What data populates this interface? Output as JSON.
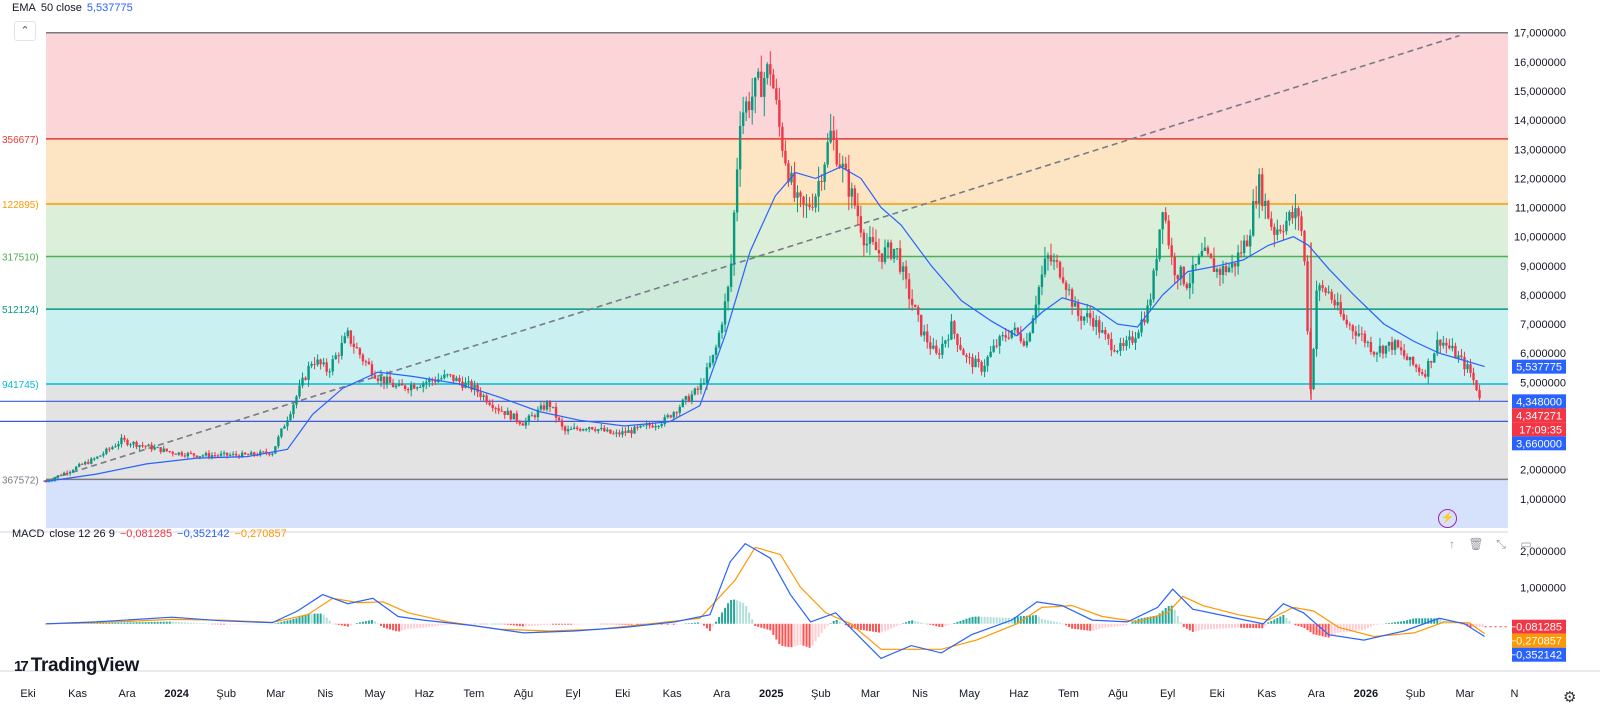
{
  "indicators": {
    "ema": {
      "name": "EMA",
      "params": "50 close",
      "value": "5,537775",
      "color": "#2962ff"
    },
    "macd": {
      "name": "MACD",
      "params": "close 12 26 9",
      "hist": "−0,081285",
      "macd": "−0,352142",
      "signal": "−0,270857",
      "hist_color": "#f23645",
      "macd_color": "#2962ff",
      "signal_color": "#ff9800"
    }
  },
  "branding": {
    "logo": "TradingView",
    "logo_mark": "17"
  },
  "icons": {
    "collapse": "chevron-up-icon",
    "settings": "gear-icon",
    "flash": "lightning-icon"
  },
  "pane_controls": {
    "up": "↑",
    "delete": "🗑",
    "collapse": "⤡",
    "maximize": "▭"
  },
  "chart_data": {
    "type": "candlestick",
    "price_axis": {
      "ticks": [
        "17,000000",
        "16,000000",
        "15,000000",
        "14,000000",
        "13,000000",
        "12,000000",
        "11,000000",
        "10,000000",
        "9,000000",
        "8,000000",
        "7,000000",
        "6,000000",
        "5,000000",
        "4,000000",
        "3,000000",
        "2,000000",
        "1,000000"
      ],
      "ylim": [
        0,
        17.3
      ]
    },
    "time_axis": {
      "labels": [
        "Eki",
        "Kas",
        "Ara",
        "2024",
        "Şub",
        "Mar",
        "Nis",
        "May",
        "Haz",
        "Tem",
        "Ağu",
        "Eyl",
        "Eki",
        "Kas",
        "Ara",
        "2025",
        "Şub",
        "Mar",
        "Nis",
        "May",
        "Haz",
        "Tem",
        "Ağu",
        "Eyl",
        "Eki",
        "Kas",
        "Ara",
        "2026",
        "Şub",
        "Mar",
        "N"
      ],
      "bold": [
        "2024",
        "2025",
        "2026"
      ]
    },
    "price_badges": [
      {
        "label": "5,537775",
        "value": 5.5378,
        "color": "#2962ff"
      },
      {
        "label": "4,348000",
        "value": 4.348,
        "color": "#2962ff"
      },
      {
        "label": "4,347271",
        "value": 4.3473,
        "color": "#f23645"
      },
      {
        "label": "17:09:35",
        "value": 4.3473,
        "color": "#f23645"
      },
      {
        "label": "3,660000",
        "value": 3.66,
        "color": "#2962ff"
      }
    ],
    "horizontal_lines": [
      4.348,
      3.66
    ],
    "fib_levels": [
      {
        "label": "",
        "value": 17.0,
        "line": "#787b86",
        "fill": "#fbd5d8"
      },
      {
        "label": "356677)",
        "value": 13.3567,
        "line": "#e53935",
        "fill": "#fde5c3"
      },
      {
        "label": "122895)",
        "value": 11.1229,
        "line": "#ff9800",
        "fill": "#dcefd8"
      },
      {
        "label": "317510)",
        "value": 9.3175,
        "line": "#4caf50",
        "fill": "#cdeadb"
      },
      {
        "label": "512124)",
        "value": 7.5121,
        "line": "#089981",
        "fill": "#cbf0f2"
      },
      {
        "label": "941745)",
        "value": 4.9417,
        "line": "#00bcd4",
        "fill": "#e3e3e3"
      },
      {
        "label": "367572)",
        "value": 1.6676,
        "line": "#787b86",
        "fill": "#d6e1fb"
      }
    ],
    "trendline": {
      "from": [
        -0.05,
        1.6
      ],
      "to": [
        28.1,
        16.9
      ],
      "style": "dashed",
      "color": "#787b86"
    },
    "ohlc_path": [
      [
        0.0,
        1.6
      ],
      [
        0.5,
        2.0
      ],
      [
        1.0,
        2.4
      ],
      [
        1.5,
        3.0
      ],
      [
        2.0,
        2.8
      ],
      [
        2.5,
        2.6
      ],
      [
        3.0,
        2.5
      ],
      [
        3.5,
        2.5
      ],
      [
        4.0,
        2.5
      ],
      [
        4.5,
        2.6
      ],
      [
        5.0,
        4.6
      ],
      [
        5.3,
        5.8
      ],
      [
        5.6,
        5.4
      ],
      [
        6.0,
        6.6
      ],
      [
        6.3,
        5.8
      ],
      [
        6.6,
        5.2
      ],
      [
        7.0,
        4.8
      ],
      [
        7.5,
        5.0
      ],
      [
        8.0,
        5.2
      ],
      [
        8.5,
        4.8
      ],
      [
        9.0,
        4.1
      ],
      [
        9.5,
        3.6
      ],
      [
        10.0,
        4.3
      ],
      [
        10.3,
        3.3
      ],
      [
        10.8,
        3.5
      ],
      [
        11.3,
        3.2
      ],
      [
        11.8,
        3.4
      ],
      [
        12.3,
        3.7
      ],
      [
        12.6,
        4.2
      ],
      [
        13.0,
        4.8
      ],
      [
        13.3,
        6.0
      ],
      [
        13.6,
        8.5
      ],
      [
        13.8,
        14.2
      ],
      [
        14.1,
        15.0
      ],
      [
        14.4,
        15.8
      ],
      [
        14.6,
        13.5
      ],
      [
        14.9,
        11.2
      ],
      [
        15.1,
        10.9
      ],
      [
        15.3,
        11.5
      ],
      [
        15.6,
        13.5
      ],
      [
        15.9,
        12.0
      ],
      [
        16.1,
        11.0
      ],
      [
        16.3,
        9.8
      ],
      [
        16.6,
        9.4
      ],
      [
        16.9,
        9.6
      ],
      [
        17.1,
        8.3
      ],
      [
        17.4,
        6.8
      ],
      [
        17.7,
        5.9
      ],
      [
        18.0,
        6.9
      ],
      [
        18.3,
        5.8
      ],
      [
        18.6,
        5.5
      ],
      [
        18.9,
        6.3
      ],
      [
        19.2,
        6.8
      ],
      [
        19.5,
        6.4
      ],
      [
        19.7,
        8.0
      ],
      [
        19.9,
        9.3
      ],
      [
        20.2,
        8.8
      ],
      [
        20.5,
        7.3
      ],
      [
        20.8,
        7.2
      ],
      [
        21.1,
        6.4
      ],
      [
        21.4,
        6.1
      ],
      [
        21.6,
        6.5
      ],
      [
        21.9,
        7.5
      ],
      [
        22.0,
        8.3
      ],
      [
        22.2,
        11.2
      ],
      [
        22.4,
        9.0
      ],
      [
        22.7,
        8.4
      ],
      [
        23.0,
        9.4
      ],
      [
        23.3,
        8.8
      ],
      [
        23.6,
        9.0
      ],
      [
        23.9,
        10.0
      ],
      [
        24.1,
        11.9
      ],
      [
        24.4,
        10.2
      ],
      [
        24.7,
        10.6
      ],
      [
        24.9,
        10.8
      ],
      [
        25.0,
        9.8
      ],
      [
        25.15,
        4.4
      ],
      [
        25.25,
        8.2
      ],
      [
        25.5,
        8.1
      ],
      [
        25.8,
        7.1
      ],
      [
        26.1,
        6.7
      ],
      [
        26.4,
        6.1
      ],
      [
        26.8,
        6.3
      ],
      [
        27.1,
        5.7
      ],
      [
        27.4,
        5.3
      ],
      [
        27.7,
        6.5
      ],
      [
        28.0,
        6.0
      ],
      [
        28.3,
        5.4
      ],
      [
        28.55,
        4.35
      ]
    ],
    "ema_path": [
      [
        0.0,
        1.6
      ],
      [
        1.0,
        1.85
      ],
      [
        2.0,
        2.2
      ],
      [
        3.0,
        2.4
      ],
      [
        4.0,
        2.45
      ],
      [
        4.8,
        2.7
      ],
      [
        5.3,
        3.9
      ],
      [
        5.9,
        4.8
      ],
      [
        6.6,
        5.35
      ],
      [
        7.3,
        5.2
      ],
      [
        8.2,
        4.95
      ],
      [
        9.0,
        4.5
      ],
      [
        9.8,
        4.0
      ],
      [
        10.6,
        3.7
      ],
      [
        11.5,
        3.5
      ],
      [
        12.4,
        3.65
      ],
      [
        13.0,
        4.2
      ],
      [
        13.5,
        6.6
      ],
      [
        14.0,
        9.5
      ],
      [
        14.5,
        11.4
      ],
      [
        14.9,
        12.2
      ],
      [
        15.3,
        12.0
      ],
      [
        15.8,
        12.4
      ],
      [
        16.2,
        12.0
      ],
      [
        16.6,
        11.0
      ],
      [
        17.0,
        10.4
      ],
      [
        17.6,
        9.0
      ],
      [
        18.2,
        7.8
      ],
      [
        18.8,
        7.1
      ],
      [
        19.3,
        6.6
      ],
      [
        19.8,
        7.4
      ],
      [
        20.2,
        7.9
      ],
      [
        20.8,
        7.6
      ],
      [
        21.3,
        7.0
      ],
      [
        21.7,
        6.9
      ],
      [
        22.2,
        8.0
      ],
      [
        22.7,
        8.8
      ],
      [
        23.3,
        9.0
      ],
      [
        23.8,
        9.2
      ],
      [
        24.3,
        9.7
      ],
      [
        24.8,
        10.0
      ],
      [
        25.1,
        9.7
      ],
      [
        25.5,
        8.9
      ],
      [
        26.0,
        8.0
      ],
      [
        26.6,
        7.0
      ],
      [
        27.2,
        6.4
      ],
      [
        27.7,
        6.0
      ],
      [
        28.1,
        5.8
      ],
      [
        28.6,
        5.54
      ]
    ],
    "macd_panel": {
      "ticks": [
        "2,000000",
        "1,000000"
      ],
      "ylim": [
        -1.05,
        2.3
      ],
      "macd_line": [
        [
          0.0,
          0.0
        ],
        [
          1.0,
          0.05
        ],
        [
          2.5,
          0.18
        ],
        [
          3.5,
          0.08
        ],
        [
          4.5,
          0.03
        ],
        [
          5.0,
          0.35
        ],
        [
          5.5,
          0.8
        ],
        [
          6.0,
          0.55
        ],
        [
          6.5,
          0.7
        ],
        [
          7.0,
          0.2
        ],
        [
          7.5,
          0.1
        ],
        [
          8.5,
          -0.05
        ],
        [
          9.5,
          -0.25
        ],
        [
          10.5,
          -0.2
        ],
        [
          11.5,
          -0.1
        ],
        [
          12.5,
          0.05
        ],
        [
          13.2,
          0.25
        ],
        [
          13.6,
          1.7
        ],
        [
          13.9,
          2.2
        ],
        [
          14.4,
          1.8
        ],
        [
          14.8,
          0.8
        ],
        [
          15.2,
          0.05
        ],
        [
          15.7,
          0.3
        ],
        [
          16.2,
          -0.4
        ],
        [
          16.6,
          -0.95
        ],
        [
          17.2,
          -0.6
        ],
        [
          17.8,
          -0.8
        ],
        [
          18.4,
          -0.3
        ],
        [
          19.2,
          0.1
        ],
        [
          19.7,
          0.6
        ],
        [
          20.2,
          0.5
        ],
        [
          20.8,
          0.1
        ],
        [
          21.5,
          0.05
        ],
        [
          22.1,
          0.45
        ],
        [
          22.4,
          0.95
        ],
        [
          22.8,
          0.4
        ],
        [
          23.5,
          0.2
        ],
        [
          24.2,
          0.0
        ],
        [
          24.6,
          0.55
        ],
        [
          25.0,
          0.3
        ],
        [
          25.5,
          -0.3
        ],
        [
          26.2,
          -0.45
        ],
        [
          27.0,
          -0.2
        ],
        [
          27.7,
          0.15
        ],
        [
          28.2,
          0.0
        ],
        [
          28.6,
          -0.35
        ]
      ],
      "signal_line": [
        [
          0.0,
          0.0
        ],
        [
          1.0,
          0.03
        ],
        [
          2.5,
          0.12
        ],
        [
          3.5,
          0.1
        ],
        [
          4.5,
          0.04
        ],
        [
          5.2,
          0.25
        ],
        [
          5.7,
          0.7
        ],
        [
          6.2,
          0.58
        ],
        [
          6.7,
          0.6
        ],
        [
          7.2,
          0.3
        ],
        [
          8.0,
          0.05
        ],
        [
          9.0,
          -0.15
        ],
        [
          10.0,
          -0.2
        ],
        [
          11.0,
          -0.15
        ],
        [
          12.0,
          0.0
        ],
        [
          13.0,
          0.15
        ],
        [
          13.7,
          1.2
        ],
        [
          14.1,
          2.1
        ],
        [
          14.6,
          1.9
        ],
        [
          15.0,
          1.0
        ],
        [
          15.5,
          0.3
        ],
        [
          16.0,
          0.0
        ],
        [
          16.6,
          -0.7
        ],
        [
          17.2,
          -0.7
        ],
        [
          17.8,
          -0.7
        ],
        [
          18.5,
          -0.45
        ],
        [
          19.3,
          0.0
        ],
        [
          19.8,
          0.45
        ],
        [
          20.4,
          0.5
        ],
        [
          21.0,
          0.2
        ],
        [
          21.7,
          0.05
        ],
        [
          22.3,
          0.3
        ],
        [
          22.6,
          0.75
        ],
        [
          23.0,
          0.5
        ],
        [
          23.7,
          0.25
        ],
        [
          24.3,
          0.1
        ],
        [
          24.8,
          0.45
        ],
        [
          25.2,
          0.35
        ],
        [
          25.7,
          -0.1
        ],
        [
          26.4,
          -0.35
        ],
        [
          27.2,
          -0.25
        ],
        [
          27.8,
          0.05
        ],
        [
          28.3,
          0.02
        ],
        [
          28.6,
          -0.27
        ]
      ],
      "histogram_span": [
        0,
        28.6
      ]
    }
  }
}
